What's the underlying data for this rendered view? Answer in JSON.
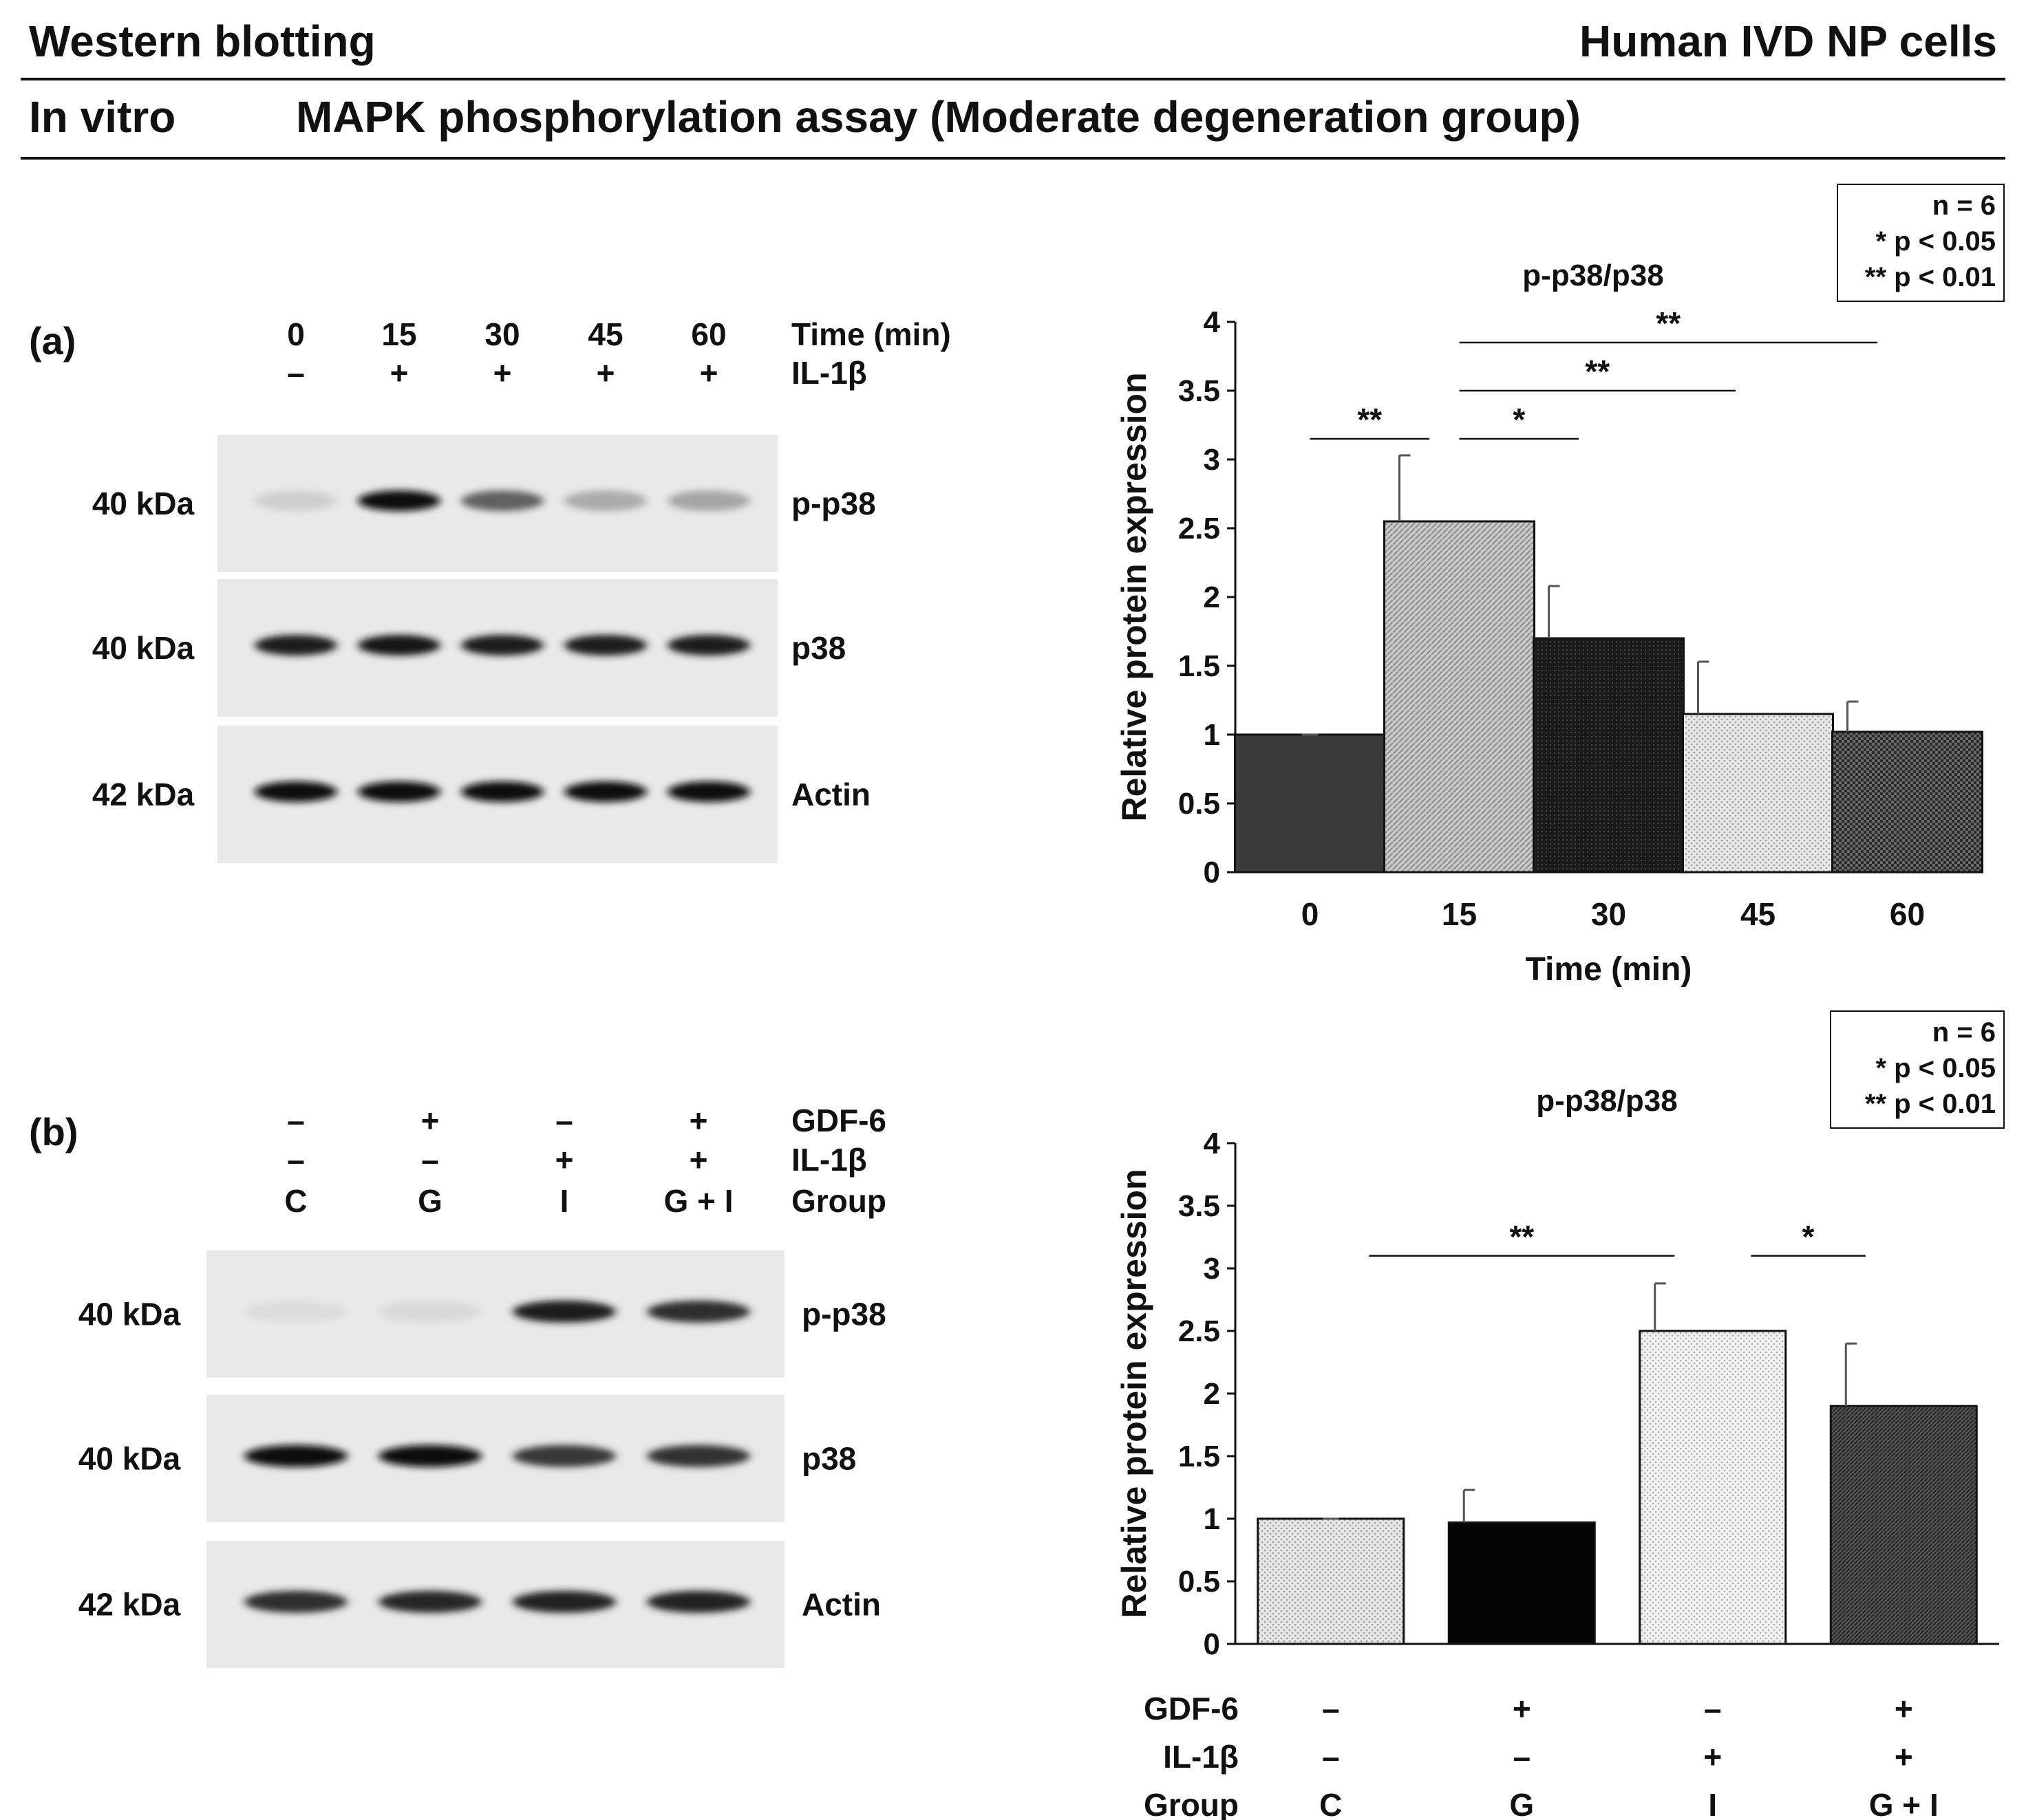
{
  "header": {
    "left_title": "Western blotting",
    "right_title": "Human IVD NP cells",
    "subheader_left": "In vitro",
    "subheader_center": "MAPK phosphorylation assay (Moderate degeneration group)"
  },
  "panel_a": {
    "label": "(a)",
    "times": [
      "0",
      "15",
      "30",
      "45",
      "60"
    ],
    "time_label": "Time (min)",
    "il1b": [
      "–",
      "+",
      "+",
      "+",
      "+"
    ],
    "il1b_label": "IL-1β",
    "blots": [
      {
        "kda": "40 kDa",
        "name": "p-p38",
        "intensity": [
          0.12,
          0.95,
          0.6,
          0.28,
          0.3
        ]
      },
      {
        "kda": "40 kDa",
        "name": "p38",
        "intensity": [
          0.9,
          0.92,
          0.9,
          0.9,
          0.9
        ]
      },
      {
        "kda": "42 kDa",
        "name": "Actin",
        "intensity": [
          0.95,
          0.95,
          0.95,
          0.95,
          0.95
        ]
      }
    ]
  },
  "panel_b": {
    "label": "(b)",
    "rows": [
      {
        "label": "GDF-6",
        "values": [
          "–",
          "+",
          "–",
          "+"
        ]
      },
      {
        "label": "IL-1β",
        "values": [
          "–",
          "–",
          "+",
          "+"
        ]
      },
      {
        "label": "Group",
        "values": [
          "C",
          "G",
          "I",
          "G + I"
        ]
      }
    ],
    "blots": [
      {
        "kda": "40 kDa",
        "name": "p-p38",
        "intensity": [
          0.06,
          0.08,
          0.9,
          0.82
        ]
      },
      {
        "kda": "40 kDa",
        "name": "p38",
        "intensity": [
          0.95,
          0.95,
          0.78,
          0.8
        ]
      },
      {
        "kda": "42 kDa",
        "name": "Actin",
        "intensity": [
          0.82,
          0.85,
          0.88,
          0.88
        ]
      }
    ]
  },
  "chart_data": [
    {
      "type": "bar",
      "title": "p-p38/p38",
      "xlabel": "Time (min)",
      "ylabel": "Relative protein expression",
      "ylim": [
        0,
        4
      ],
      "yticks": [
        "0",
        "0.5",
        "1",
        "1.5",
        "2",
        "2.5",
        "3",
        "3.5",
        "4"
      ],
      "categories": [
        "0",
        "15",
        "30",
        "45",
        "60"
      ],
      "values": [
        1.0,
        2.55,
        1.7,
        1.15,
        1.02
      ],
      "errors": [
        0.0,
        0.48,
        0.38,
        0.38,
        0.22
      ],
      "fills": [
        "#3a3a3a",
        "pattern-light",
        "pattern-dark",
        "pattern-dot",
        "pattern-check"
      ],
      "significance": [
        {
          "from": 0,
          "to": 1,
          "label": "**",
          "y": 3.15
        },
        {
          "from": 1,
          "to": 2,
          "label": "*",
          "y": 3.15
        },
        {
          "from": 1,
          "to": 3,
          "label": "**",
          "y": 3.5
        },
        {
          "from": 1,
          "to": 4,
          "label": "**",
          "y": 3.85
        }
      ],
      "legend": [
        "n = 6",
        "* p < 0.05",
        "** p < 0.01"
      ]
    },
    {
      "type": "bar",
      "title": "p-p38/p38",
      "ylabel": "Relative protein expression",
      "ylim": [
        0,
        4
      ],
      "yticks": [
        "0",
        "0.5",
        "1",
        "1.5",
        "2",
        "2.5",
        "3",
        "3.5",
        "4"
      ],
      "categories": [
        "C",
        "G",
        "I",
        "G + I"
      ],
      "values": [
        1.0,
        0.97,
        2.5,
        1.9
      ],
      "errors": [
        0.0,
        0.26,
        0.38,
        0.5
      ],
      "fills": [
        "pattern-dot",
        "#050505",
        "pattern-dot-light",
        "pattern-dark2"
      ],
      "significance": [
        {
          "from": 0,
          "to": 2,
          "label": "**",
          "y": 3.1
        },
        {
          "from": 2,
          "to": 3,
          "label": "*",
          "y": 3.1
        }
      ],
      "legend": [
        "n = 6",
        "* p < 0.05",
        "** p < 0.01"
      ],
      "condition_rows": [
        {
          "label": "GDF-6",
          "values": [
            "–",
            "+",
            "–",
            "+"
          ]
        },
        {
          "label": "IL-1β",
          "values": [
            "–",
            "–",
            "+",
            "+"
          ]
        },
        {
          "label": "Group",
          "values": [
            "C",
            "G",
            "I",
            "G + I"
          ]
        }
      ]
    }
  ]
}
